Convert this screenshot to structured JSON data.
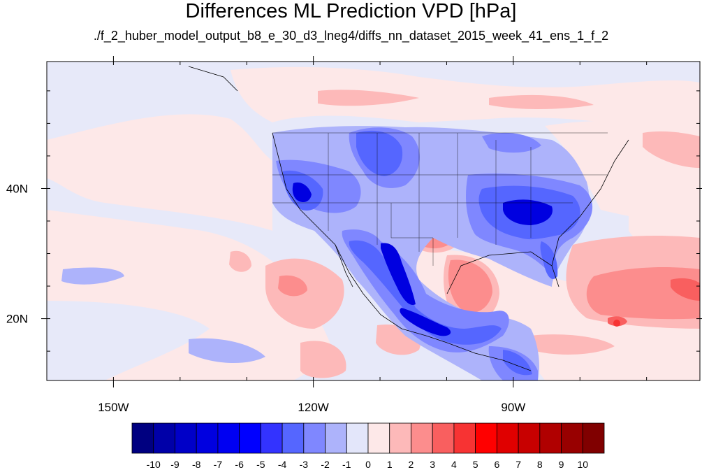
{
  "title": "Differences ML Prediction VPD [hPa]",
  "subtitle": "./f_2_huber_model_output_b8_e_30_d3_lneg4/diffs_nn_dataset_2015_week_41_ens_1_f_2",
  "map": {
    "lon_range": [
      -160,
      -62
    ],
    "lat_range": [
      10.5,
      59.5
    ],
    "lon_ticks": [
      {
        "value": -150,
        "label": "150W"
      },
      {
        "value": -120,
        "label": "120W"
      },
      {
        "value": -90,
        "label": "90W"
      }
    ],
    "lat_ticks": [
      {
        "value": 40,
        "label": "40N"
      },
      {
        "value": 20,
        "label": "20N"
      }
    ],
    "background_color": "#e7e9f9"
  },
  "colorbar": {
    "colors": [
      "#000080",
      "#0000a8",
      "#0000c8",
      "#0000e0",
      "#0000f2",
      "#0000ff",
      "#3333ff",
      "#5566ff",
      "#7f87ff",
      "#adb3fb",
      "#e3e6fa",
      "#fde8e8",
      "#fdb9b9",
      "#fc8d8d",
      "#f95f5f",
      "#f73333",
      "#ff0000",
      "#e00000",
      "#c80000",
      "#b00000",
      "#980000",
      "#800000"
    ],
    "labels": [
      "-10",
      "-9",
      "-8",
      "-7",
      "-6",
      "-5",
      "-4",
      "-3",
      "-2",
      "-1",
      "0",
      "1",
      "2",
      "3",
      "4",
      "5",
      "6",
      "7",
      "8",
      "9",
      "10"
    ]
  },
  "chart_data": {
    "type": "heatmap",
    "title": "Differences ML Prediction VPD [hPa]",
    "subtitle": "./f_2_huber_model_output_b8_e_30_d3_lneg4/diffs_nn_dataset_2015_week_41_ens_1_f_2",
    "variable_units": "hPa",
    "levels": [
      -10,
      -9,
      -8,
      -7,
      -6,
      -5,
      -4,
      -3,
      -2,
      -1,
      0,
      1,
      2,
      3,
      4,
      5,
      6,
      7,
      8,
      9,
      10
    ],
    "x_ticks": [
      "150W",
      "120W",
      "90W"
    ],
    "y_ticks": [
      "40N",
      "20N"
    ]
  }
}
